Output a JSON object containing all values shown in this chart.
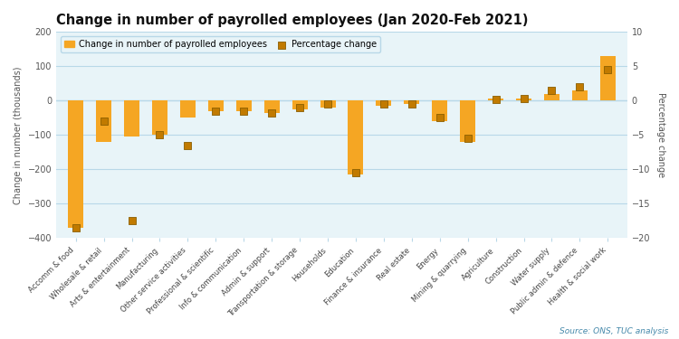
{
  "title": "Change in number of payrolled employees (Jan 2020-Feb 2021)",
  "categories": [
    "Accomm & food",
    "Wholesale & retail",
    "Arts & entertainment",
    "Manufacturing",
    "Other service activities",
    "Professional & scientific",
    "Info & communication",
    "Admin & support",
    "Transportation & storage",
    "Households",
    "Education",
    "Finance & insurance",
    "Real estate",
    "Energy",
    "Mining & quarrying",
    "Agriculture",
    "Construction",
    "Water supply",
    "Public admin & defence",
    "Health & social work"
  ],
  "bar_values": [
    -370,
    -120,
    -105,
    -100,
    -50,
    -30,
    -30,
    -35,
    -25,
    -20,
    -215,
    -15,
    -10,
    -60,
    -120,
    5,
    5,
    20,
    30,
    130
  ],
  "dot_values": [
    -18.5,
    -3.0,
    -17.5,
    -5.0,
    -6.5,
    -1.5,
    -1.5,
    -1.8,
    -1.0,
    -0.5,
    -10.5,
    -0.5,
    -0.5,
    -2.5,
    -5.5,
    0.2,
    0.3,
    1.5,
    2.0,
    4.5
  ],
  "bar_color": "#F5A623",
  "dot_color": "#C17A00",
  "dot_edge_color": "#8B5E00",
  "background_color": "#FFFFFF",
  "plot_bg_color": "#E8F4F8",
  "grid_color": "#B8D8E8",
  "ylabel_left": "Change in number (thousands)",
  "ylabel_right": "Percentage change",
  "ylim_left": [
    -400,
    200
  ],
  "ylim_right": [
    -20,
    10
  ],
  "yticks_left": [
    -400,
    -300,
    -200,
    -100,
    0,
    100,
    200
  ],
  "yticks_right": [
    -20,
    -15,
    -10,
    -5,
    0,
    5,
    10
  ],
  "source_text": "Source: ONS, TUC analysis",
  "legend_bar_label": "Change in number of payrolled employees",
  "legend_dot_label": "Percentage change",
  "title_fontsize": 10.5,
  "axis_fontsize": 7,
  "tick_fontsize": 7,
  "xtick_fontsize": 6.0
}
